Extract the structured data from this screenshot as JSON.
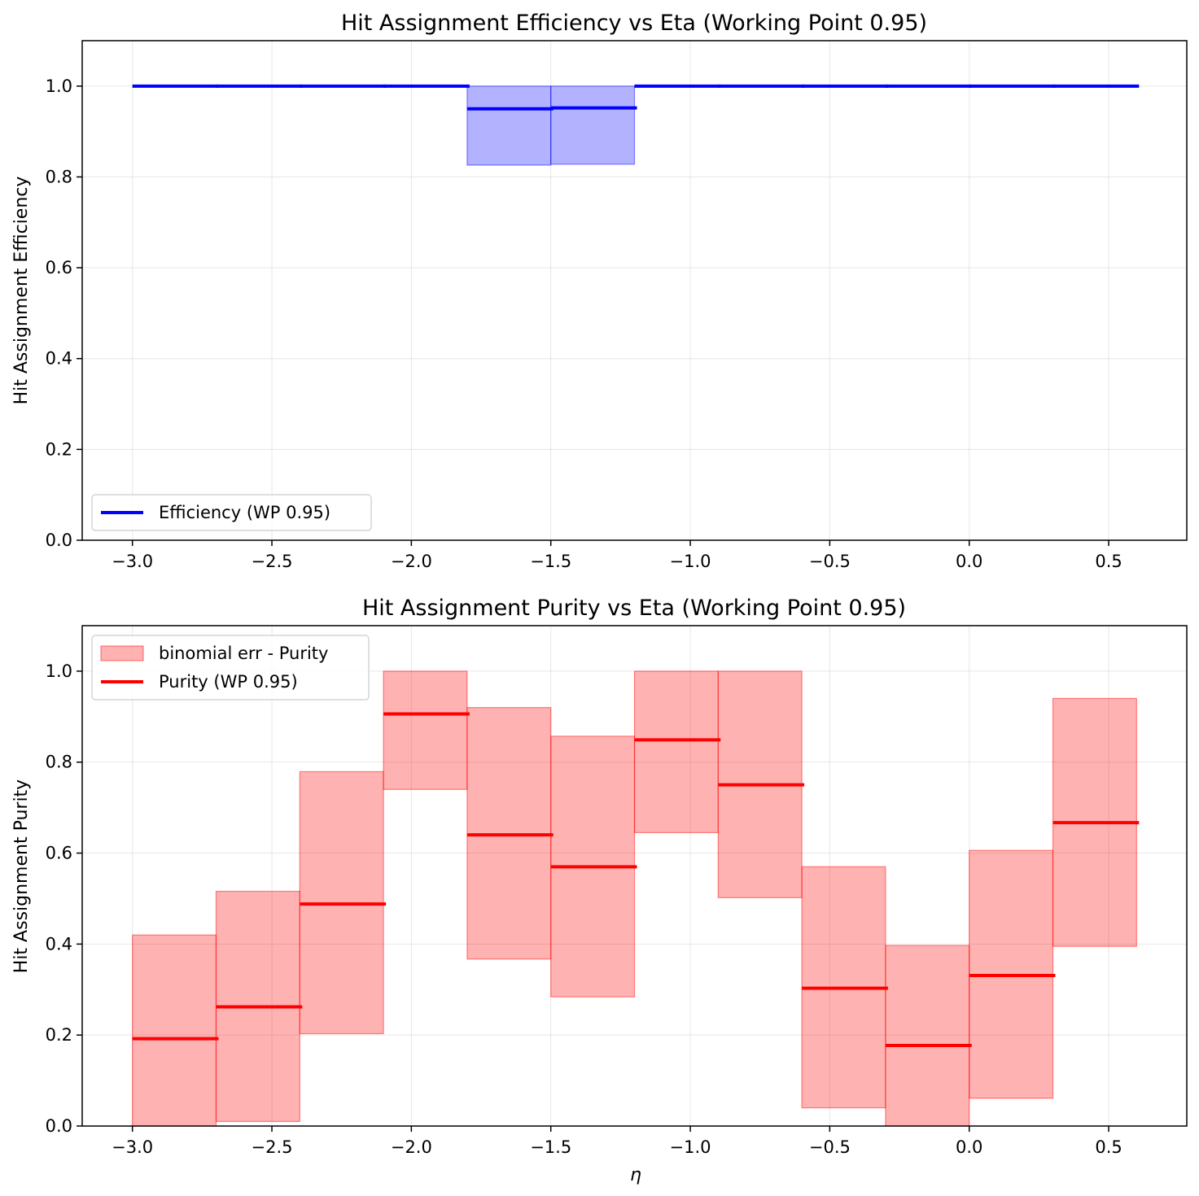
{
  "chart_data": [
    {
      "type": "step",
      "title": "Hit Assignment Efficiency vs Eta (Working Point 0.95)",
      "xlabel": "",
      "ylabel": "Hit Assignment Efficiency",
      "xlim": [
        -3.18,
        0.78
      ],
      "ylim": [
        0.0,
        1.1
      ],
      "xticks": [
        -3.0,
        -2.5,
        -2.0,
        -1.5,
        -1.0,
        -0.5,
        0.0,
        0.5
      ],
      "xtick_labels": [
        "−3.0",
        "−2.5",
        "−2.0",
        "−1.5",
        "−1.0",
        "−0.5",
        "0.0",
        "0.5"
      ],
      "yticks": [
        0.0,
        0.2,
        0.4,
        0.6,
        0.8,
        1.0
      ],
      "ytick_labels": [
        "0.0",
        "0.2",
        "0.4",
        "0.6",
        "0.8",
        "1.0"
      ],
      "grid": true,
      "legend_loc": "lower left",
      "bin_edges": [
        -3.0,
        -2.7,
        -2.4,
        -2.1,
        -1.8,
        -1.5,
        -1.2,
        -0.9,
        -0.6,
        -0.3,
        0.0,
        0.3,
        0.6
      ],
      "color": "#0000ff",
      "series": [
        {
          "name": "Efficiency (WP 0.95)",
          "values": [
            1.0,
            1.0,
            1.0,
            1.0,
            0.95,
            0.952,
            1.0,
            1.0,
            1.0,
            1.0,
            1.0,
            1.0
          ],
          "err_low": [
            1.0,
            1.0,
            1.0,
            1.0,
            0.826,
            0.828,
            1.0,
            1.0,
            1.0,
            1.0,
            1.0,
            1.0
          ],
          "err_high": [
            1.0,
            1.0,
            1.0,
            1.0,
            1.0,
            1.0,
            1.0,
            1.0,
            1.0,
            1.0,
            1.0,
            1.0
          ]
        }
      ],
      "legend": [
        "Efficiency (WP 0.95)"
      ]
    },
    {
      "type": "step",
      "title": "Hit Assignment Purity vs Eta (Working Point 0.95)",
      "xlabel": "η",
      "ylabel": "Hit Assignment Purity",
      "xlim": [
        -3.18,
        0.78
      ],
      "ylim": [
        0.0,
        1.1
      ],
      "xticks": [
        -3.0,
        -2.5,
        -2.0,
        -1.5,
        -1.0,
        -0.5,
        0.0,
        0.5
      ],
      "xtick_labels": [
        "−3.0",
        "−2.5",
        "−2.0",
        "−1.5",
        "−1.0",
        "−0.5",
        "0.0",
        "0.5"
      ],
      "yticks": [
        0.0,
        0.2,
        0.4,
        0.6,
        0.8,
        1.0
      ],
      "ytick_labels": [
        "0.0",
        "0.2",
        "0.4",
        "0.6",
        "0.8",
        "1.0"
      ],
      "grid": true,
      "legend_loc": "upper left",
      "bin_edges": [
        -3.0,
        -2.7,
        -2.4,
        -2.1,
        -1.8,
        -1.5,
        -1.2,
        -0.9,
        -0.6,
        -0.3,
        0.0,
        0.3,
        0.6
      ],
      "color": "#ff0000",
      "series": [
        {
          "name": "Purity (WP 0.95)",
          "values": [
            0.192,
            0.262,
            0.488,
            0.906,
            0.64,
            0.57,
            0.849,
            0.75,
            0.303,
            0.177,
            0.331,
            0.667
          ],
          "err_low": [
            0.0,
            0.01,
            0.203,
            0.74,
            0.367,
            0.284,
            0.645,
            0.502,
            0.04,
            0.0,
            0.061,
            0.395
          ],
          "err_high": [
            0.42,
            0.516,
            0.779,
            1.0,
            0.92,
            0.857,
            1.0,
            1.0,
            0.57,
            0.397,
            0.606,
            0.94
          ]
        }
      ],
      "legend": [
        "binomial err - Purity",
        "Purity (WP 0.95)"
      ]
    }
  ]
}
